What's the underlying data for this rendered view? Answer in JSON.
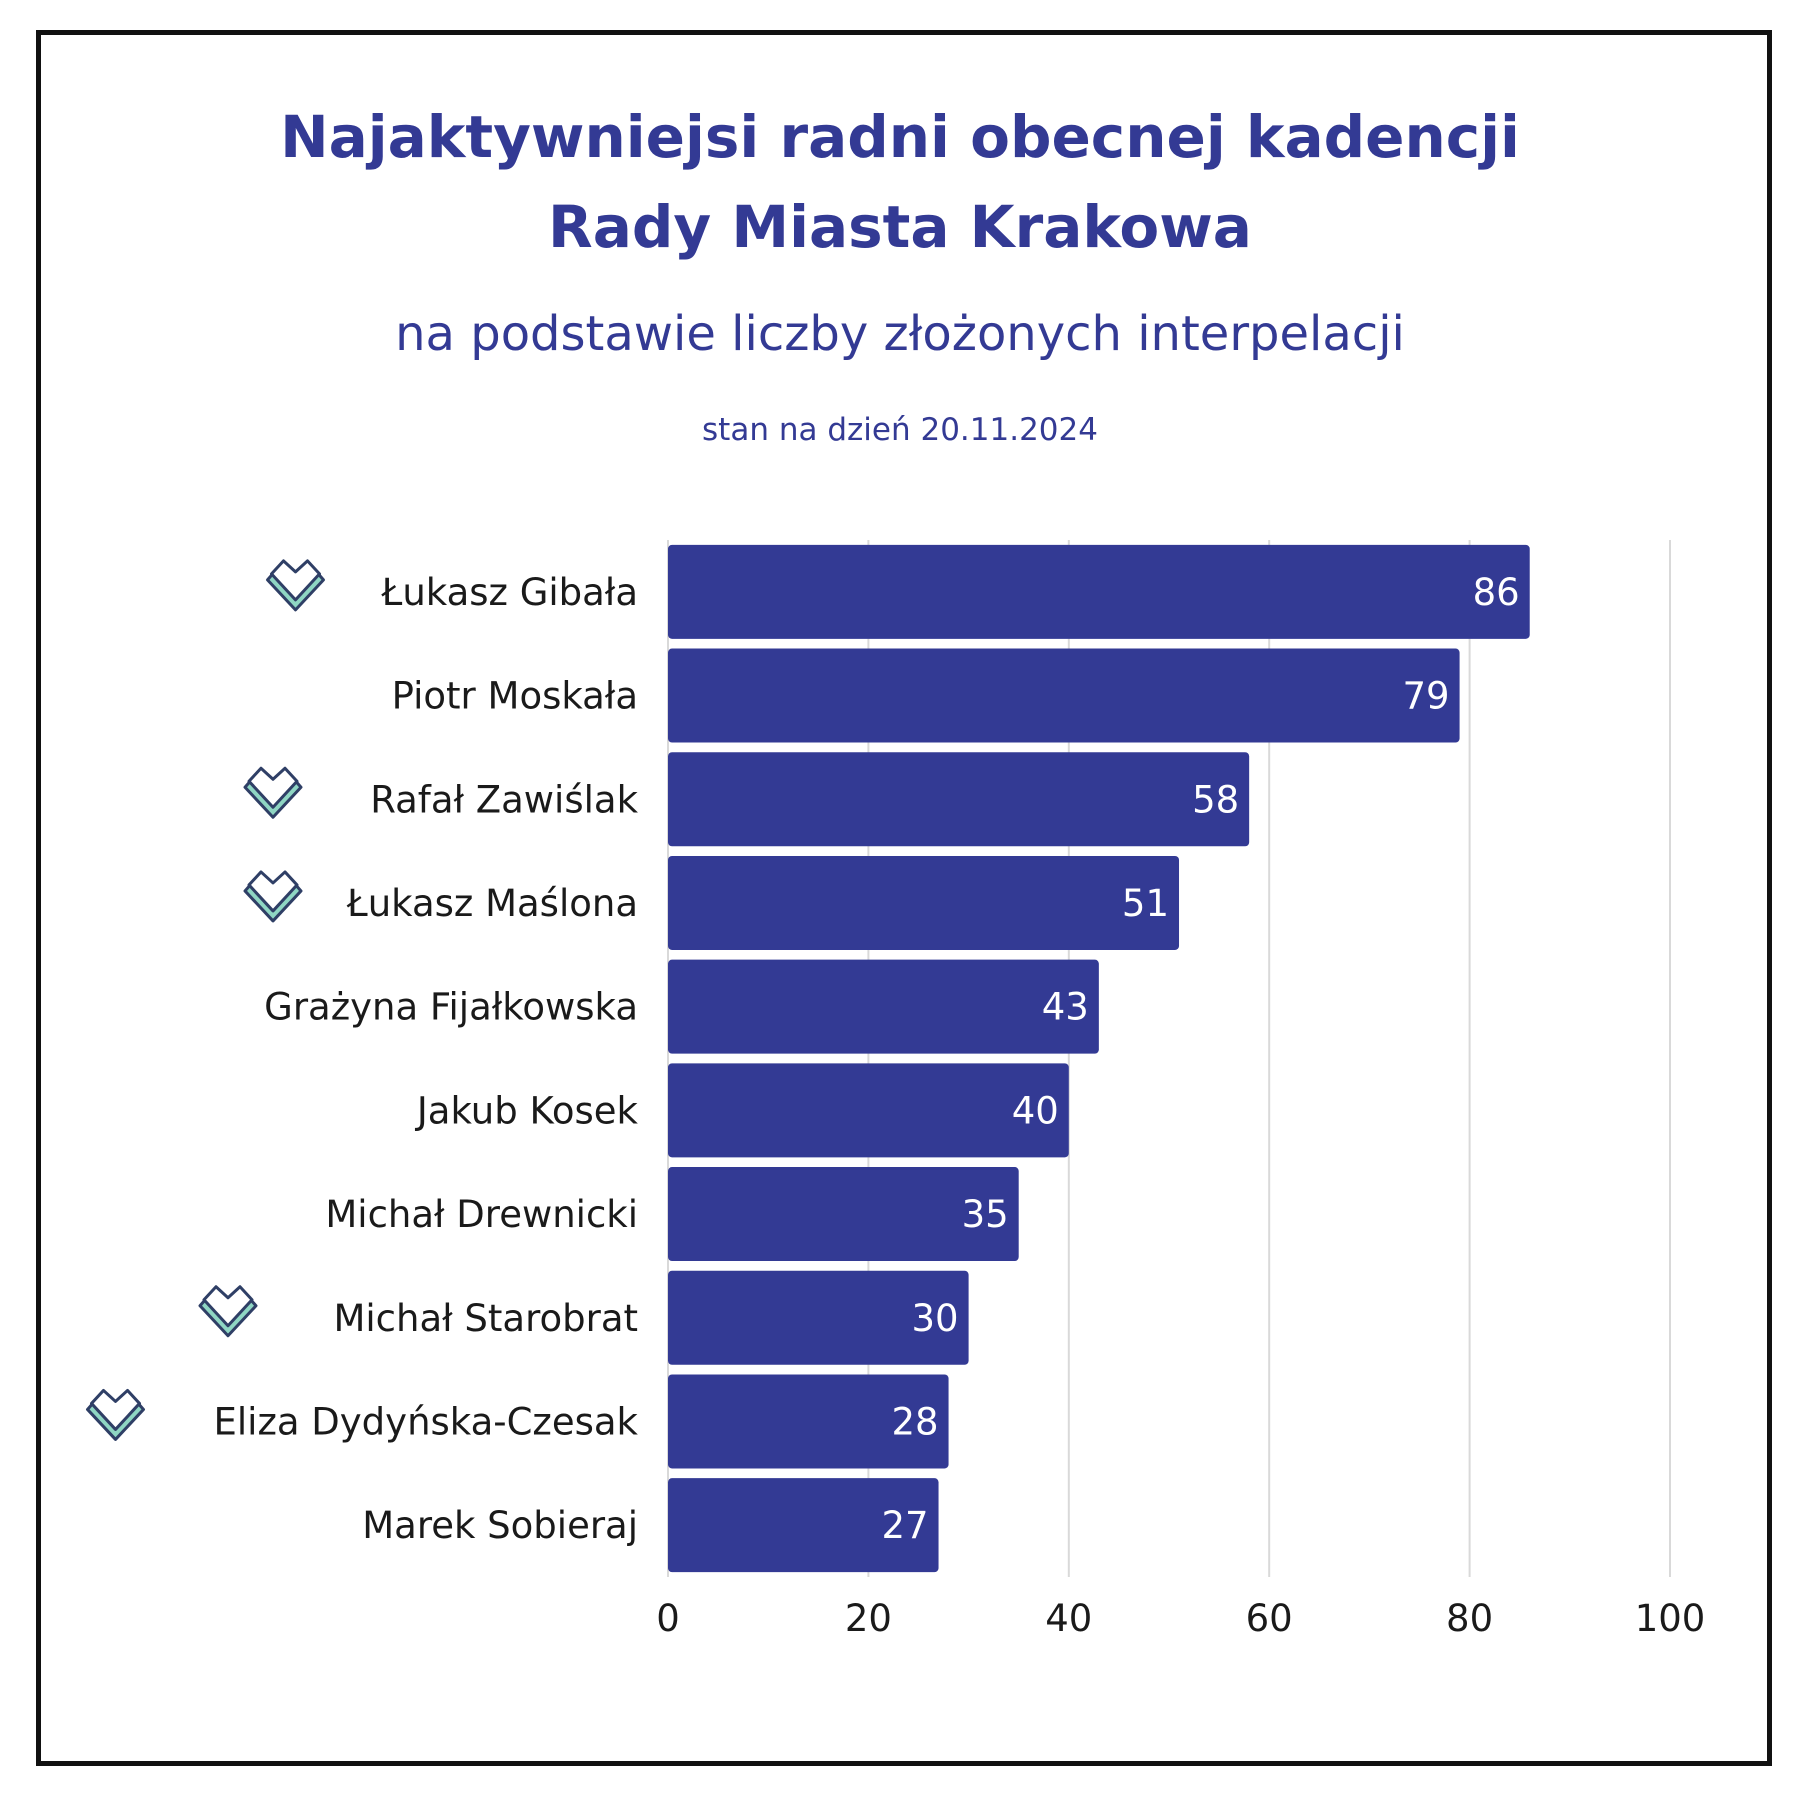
{
  "header": {
    "title_line1": "Najaktywniejsi radni obecnej kadencji",
    "title_line2": "Rady Miasta Krakowa",
    "subtitle": "na podstawie liczby złożonych interpelacji",
    "date": "stan na dzień 20.11.2024"
  },
  "colors": {
    "bar": "#333a94",
    "title": "#333a94",
    "grid": "#d9d9d9",
    "heart_outline": "#2f3f66",
    "heart_fill": "#8fd6c3"
  },
  "chart_data": {
    "type": "bar",
    "orientation": "horizontal",
    "categories": [
      "Łukasz Gibała",
      "Piotr Moskała",
      "Rafał Zawiślak",
      "Łukasz Maślona",
      "Grażyna Fijałkowska",
      "Jakub Kosek",
      "Michał Drewnicki",
      "Michał Starobrat",
      "Eliza Dydyńska-Czesak",
      "Marek Sobieraj"
    ],
    "values": [
      86,
      79,
      58,
      51,
      43,
      40,
      35,
      30,
      28,
      27
    ],
    "heart_icon": [
      true,
      false,
      true,
      true,
      false,
      false,
      false,
      true,
      true,
      false
    ],
    "heart_icon_name": "heart-icon",
    "xlim": [
      0,
      100
    ],
    "xticks": [
      0,
      20,
      40,
      60,
      80,
      100
    ],
    "grid": "vertical",
    "data_labels": "inside-end"
  }
}
